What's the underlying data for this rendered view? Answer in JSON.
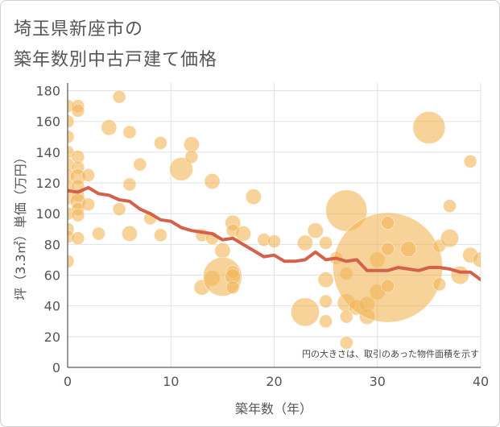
{
  "title_lines": [
    "埼玉県新座市の",
    "築年数別中古戸建て価格"
  ],
  "chart_data": {
    "type": "scatter",
    "title": "埼玉県新座市の築年数別中古戸建て価格",
    "xlabel": "築年数（年）",
    "ylabel": "坪（3.3㎡）単価（万円）",
    "xlim": [
      0,
      40
    ],
    "ylim": [
      0,
      185
    ],
    "xticks": [
      0,
      10,
      20,
      30,
      40
    ],
    "yticks": [
      0,
      20,
      40,
      60,
      80,
      100,
      120,
      140,
      160,
      180
    ],
    "grid": true,
    "annotation": "円の大きさは、取引のあった物件面積を示す",
    "colors": {
      "bubble": "#f2b75b",
      "line": "#d4624a",
      "axis_text": "#555555",
      "grid": "#dde2e6"
    },
    "series": [
      {
        "kind": "bubble",
        "points": [
          {
            "x": 0,
            "y": 170,
            "s": 1
          },
          {
            "x": 0,
            "y": 160,
            "s": 1
          },
          {
            "x": 0,
            "y": 150,
            "s": 1
          },
          {
            "x": 0,
            "y": 140,
            "s": 1
          },
          {
            "x": 0,
            "y": 132,
            "s": 1
          },
          {
            "x": 0,
            "y": 125,
            "s": 1
          },
          {
            "x": 0,
            "y": 118,
            "s": 1
          },
          {
            "x": 0,
            "y": 110,
            "s": 1
          },
          {
            "x": 0,
            "y": 100,
            "s": 1
          },
          {
            "x": 0,
            "y": 90,
            "s": 1
          },
          {
            "x": 0,
            "y": 85,
            "s": 1
          },
          {
            "x": 0,
            "y": 69,
            "s": 1
          },
          {
            "x": 1,
            "y": 170,
            "s": 1
          },
          {
            "x": 1,
            "y": 167,
            "s": 1
          },
          {
            "x": 1,
            "y": 137,
            "s": 1
          },
          {
            "x": 1,
            "y": 130,
            "s": 1
          },
          {
            "x": 1,
            "y": 124,
            "s": 1.2
          },
          {
            "x": 1,
            "y": 118,
            "s": 1
          },
          {
            "x": 1,
            "y": 112,
            "s": 1
          },
          {
            "x": 1,
            "y": 108,
            "s": 1.2
          },
          {
            "x": 1,
            "y": 103,
            "s": 1
          },
          {
            "x": 1,
            "y": 99,
            "s": 1
          },
          {
            "x": 1,
            "y": 84,
            "s": 1
          },
          {
            "x": 2,
            "y": 125,
            "s": 1
          },
          {
            "x": 2,
            "y": 106,
            "s": 1
          },
          {
            "x": 3,
            "y": 87,
            "s": 1
          },
          {
            "x": 4,
            "y": 156,
            "s": 1.2
          },
          {
            "x": 5,
            "y": 176,
            "s": 1
          },
          {
            "x": 5,
            "y": 103,
            "s": 1
          },
          {
            "x": 6,
            "y": 153,
            "s": 1
          },
          {
            "x": 6,
            "y": 119,
            "s": 1
          },
          {
            "x": 6,
            "y": 87,
            "s": 1.2
          },
          {
            "x": 7,
            "y": 132,
            "s": 1
          },
          {
            "x": 8,
            "y": 97,
            "s": 1
          },
          {
            "x": 9,
            "y": 146,
            "s": 1
          },
          {
            "x": 9,
            "y": 86,
            "s": 1
          },
          {
            "x": 11,
            "y": 129,
            "s": 1.8
          },
          {
            "x": 12,
            "y": 145,
            "s": 1.2
          },
          {
            "x": 12,
            "y": 137,
            "s": 1
          },
          {
            "x": 13,
            "y": 86,
            "s": 1
          },
          {
            "x": 13,
            "y": 52,
            "s": 1.2
          },
          {
            "x": 14,
            "y": 121,
            "s": 1.2
          },
          {
            "x": 14,
            "y": 84,
            "s": 1
          },
          {
            "x": 14,
            "y": 58,
            "s": 1.2
          },
          {
            "x": 15,
            "y": 76,
            "s": 1.2
          },
          {
            "x": 15,
            "y": 59,
            "s": 3
          },
          {
            "x": 16,
            "y": 94,
            "s": 1.2
          },
          {
            "x": 16,
            "y": 89,
            "s": 1
          },
          {
            "x": 16,
            "y": 62,
            "s": 1
          },
          {
            "x": 16,
            "y": 59,
            "s": 1.2
          },
          {
            "x": 16,
            "y": 52,
            "s": 1
          },
          {
            "x": 17,
            "y": 87,
            "s": 1.2
          },
          {
            "x": 18,
            "y": 111,
            "s": 1.2
          },
          {
            "x": 19,
            "y": 83,
            "s": 1
          },
          {
            "x": 20,
            "y": 82,
            "s": 1
          },
          {
            "x": 23,
            "y": 81,
            "s": 1.2
          },
          {
            "x": 23,
            "y": 36,
            "s": 2.2
          },
          {
            "x": 24,
            "y": 89,
            "s": 1.2
          },
          {
            "x": 25,
            "y": 81,
            "s": 1
          },
          {
            "x": 25,
            "y": 57,
            "s": 1.2
          },
          {
            "x": 25,
            "y": 43,
            "s": 1
          },
          {
            "x": 25,
            "y": 30,
            "s": 1
          },
          {
            "x": 26,
            "y": 71,
            "s": 1
          },
          {
            "x": 27,
            "y": 102,
            "s": 3.2
          },
          {
            "x": 27,
            "y": 61,
            "s": 1
          },
          {
            "x": 27,
            "y": 42,
            "s": 1.4
          },
          {
            "x": 27,
            "y": 33,
            "s": 1
          },
          {
            "x": 27,
            "y": 16,
            "s": 1
          },
          {
            "x": 28,
            "y": 39,
            "s": 1.2
          },
          {
            "x": 29,
            "y": 41,
            "s": 1.2
          },
          {
            "x": 29,
            "y": 33,
            "s": 1.2
          },
          {
            "x": 30,
            "y": 70,
            "s": 1.2
          },
          {
            "x": 30,
            "y": 49,
            "s": 1.2
          },
          {
            "x": 31,
            "y": 65,
            "s": 8.5
          },
          {
            "x": 31,
            "y": 94,
            "s": 1
          },
          {
            "x": 31,
            "y": 77,
            "s": 1
          },
          {
            "x": 31,
            "y": 53,
            "s": 1
          },
          {
            "x": 33,
            "y": 77,
            "s": 1.2
          },
          {
            "x": 35,
            "y": 156,
            "s": 2.5
          },
          {
            "x": 36,
            "y": 79,
            "s": 1
          },
          {
            "x": 36,
            "y": 54,
            "s": 1
          },
          {
            "x": 37,
            "y": 105,
            "s": 1
          },
          {
            "x": 37,
            "y": 84,
            "s": 1.4
          },
          {
            "x": 38,
            "y": 60,
            "s": 1.4
          },
          {
            "x": 39,
            "y": 134,
            "s": 1
          },
          {
            "x": 39,
            "y": 73,
            "s": 1.2
          },
          {
            "x": 40,
            "y": 70,
            "s": 1.2
          }
        ]
      },
      {
        "kind": "line",
        "x": [
          0,
          1,
          2,
          3,
          4,
          5,
          6,
          7,
          8,
          9,
          10,
          11,
          12,
          13,
          14,
          15,
          16,
          17,
          18,
          19,
          20,
          21,
          22,
          23,
          24,
          25,
          26,
          27,
          28,
          29,
          30,
          31,
          32,
          33,
          34,
          35,
          36,
          37,
          38,
          39,
          40
        ],
        "values": [
          115,
          114,
          117,
          113,
          112,
          109,
          108,
          103,
          100,
          96,
          95,
          91,
          89,
          88,
          87,
          83,
          84,
          80,
          76,
          72,
          73,
          69,
          69,
          70,
          75,
          70,
          71,
          69,
          70,
          63,
          63,
          63,
          65,
          64,
          63,
          65,
          65,
          64,
          62,
          62,
          57
        ]
      }
    ]
  }
}
